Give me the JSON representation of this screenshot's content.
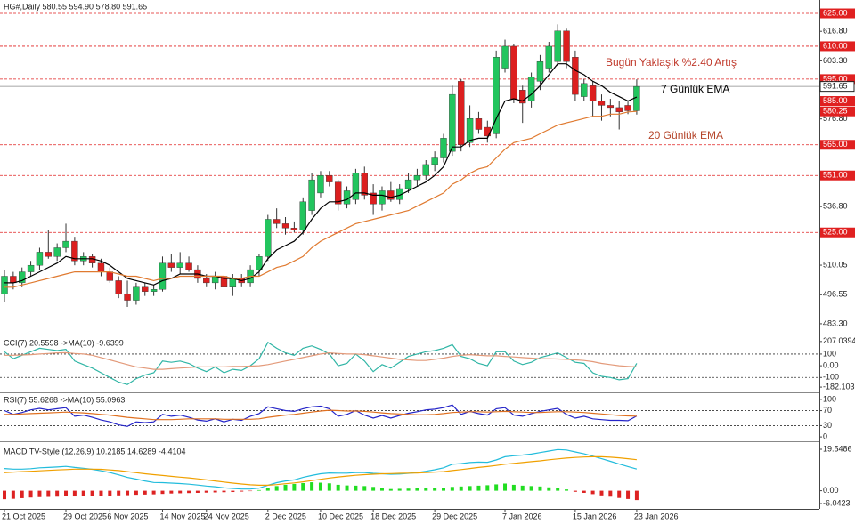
{
  "chart_data": [
    {
      "type": "candlestick",
      "title": "HG#,Daily  580.55 594.90 578.80 591.65",
      "categories": [
        "21 Oct 2025",
        null,
        null,
        null,
        null,
        null,
        null,
        "29 Oct 2025",
        null,
        null,
        null,
        null,
        "6 Nov 2025",
        null,
        null,
        null,
        null,
        null,
        "14 Nov 2025",
        null,
        null,
        null,
        null,
        "24 Nov 2025",
        null,
        null,
        null,
        null,
        null,
        null,
        "2 Dec 2025",
        null,
        null,
        null,
        null,
        null,
        "10 Dec 2025",
        null,
        null,
        null,
        null,
        null,
        "18 Dec 2025",
        null,
        null,
        null,
        null,
        null,
        null,
        "29 Dec 2025",
        null,
        null,
        null,
        null,
        null,
        null,
        null,
        "7 Jan 2026",
        null,
        null,
        null,
        null,
        null,
        null,
        null,
        "15 Jan 2026",
        null,
        null,
        null,
        null,
        null,
        null,
        "23 Jan 2026"
      ],
      "open": [
        497,
        505,
        502,
        507,
        510,
        516,
        514,
        518,
        521,
        512,
        514,
        511,
        507,
        503,
        497,
        494,
        500,
        498,
        499,
        511,
        509,
        511,
        508,
        504,
        502,
        505,
        500,
        504,
        502,
        508,
        514,
        531,
        529,
        527,
        526,
        535,
        543,
        551,
        548,
        538,
        540,
        552,
        543,
        538,
        544,
        540,
        545,
        549,
        551,
        556,
        559,
        562,
        594,
        566,
        577,
        573,
        570,
        600,
        610,
        590,
        585,
        594,
        600,
        603,
        617,
        605,
        587,
        592,
        585,
        583,
        582,
        583,
        580.55
      ],
      "high": [
        508,
        507,
        509,
        512,
        518,
        526,
        520,
        529,
        523,
        516,
        515,
        513,
        509,
        505,
        503,
        502,
        502,
        501,
        514,
        515,
        516,
        514,
        510,
        506,
        507,
        507,
        506,
        506,
        510,
        515,
        533,
        536,
        532,
        530,
        541,
        552,
        553,
        553,
        549,
        546,
        554,
        555,
        547,
        546,
        548,
        547,
        552,
        554,
        558,
        562,
        570,
        592,
        595,
        583,
        580,
        576,
        608,
        613,
        611,
        592,
        598,
        606,
        612,
        620,
        618,
        608,
        595,
        594,
        588,
        586,
        585,
        585,
        594.9
      ],
      "low": [
        493,
        499,
        500,
        505,
        508,
        513,
        512,
        516,
        510,
        510,
        509,
        505,
        502,
        495,
        491,
        492,
        496,
        496,
        498,
        507,
        506,
        507,
        502,
        500,
        499,
        498,
        496,
        500,
        500,
        505,
        512,
        527,
        524,
        525,
        524,
        533,
        541,
        546,
        535,
        536,
        538,
        540,
        533,
        535,
        539,
        538,
        543,
        546,
        549,
        553,
        557,
        560,
        562,
        564,
        570,
        566,
        568,
        598,
        584,
        575,
        582,
        590,
        598,
        601,
        600,
        585,
        585,
        578,
        576,
        578,
        572,
        579,
        578.8
      ],
      "close": [
        505,
        502,
        507,
        510,
        516,
        514,
        518,
        521,
        512,
        514,
        511,
        507,
        503,
        497,
        494,
        500,
        498,
        499,
        511,
        509,
        511,
        508,
        504,
        502,
        505,
        500,
        504,
        502,
        508,
        514,
        531,
        529,
        527,
        526,
        539,
        549,
        551,
        548,
        538,
        544,
        552,
        542,
        538,
        544,
        540,
        545,
        549,
        551,
        556,
        559,
        568,
        588,
        565,
        577,
        572,
        569,
        605,
        610,
        586,
        584,
        596,
        603,
        610,
        617,
        603,
        588,
        593,
        585,
        583,
        582,
        580,
        580.55,
        591.65
      ],
      "up_color": "#22c55e",
      "down_color": "#dc1f1f",
      "wick_color": "#333333",
      "lines": [
        {
          "color": "#000000",
          "values": [
            502,
            502,
            503,
            505,
            507,
            509,
            511,
            514,
            513,
            513,
            513,
            512,
            510,
            507,
            504,
            503,
            502,
            501,
            503,
            504,
            506,
            506,
            506,
            505,
            505,
            504,
            504,
            503,
            504,
            507,
            513,
            517,
            519,
            521,
            525,
            531,
            536,
            539,
            539,
            540,
            543,
            543,
            542,
            542,
            541,
            542,
            544,
            546,
            548,
            551,
            555,
            564,
            564,
            567,
            568,
            568,
            577,
            585,
            586,
            585,
            588,
            592,
            597,
            602,
            602,
            599,
            597,
            594,
            592,
            589,
            587,
            585,
            586.8
          ]
        },
        {
          "color": "#e07a30",
          "values": [
            500,
            500,
            501,
            502,
            503,
            504,
            505,
            506,
            507,
            507,
            507,
            507,
            507,
            506,
            505,
            505,
            504,
            503,
            504,
            504,
            505,
            505,
            505,
            505,
            505,
            505,
            504,
            504,
            505,
            505,
            507,
            509,
            510,
            512,
            514,
            518,
            521,
            523,
            525,
            527,
            529,
            530,
            531,
            532,
            533,
            534,
            535,
            537,
            539,
            541,
            543,
            547,
            549,
            552,
            554,
            555,
            559,
            563,
            566,
            567,
            568,
            570,
            572,
            574,
            575,
            576,
            577,
            578,
            578,
            579,
            579,
            580,
            580.25
          ]
        }
      ],
      "levels": [
        {
          "value": 625,
          "label": "625.00"
        },
        {
          "value": 610,
          "label": "610.00"
        },
        {
          "value": 595,
          "label": "595.00"
        },
        {
          "value": 585,
          "label": "585.00"
        },
        {
          "value": 565,
          "label": "565.00"
        },
        {
          "value": 551,
          "label": "551.00"
        },
        {
          "value": 525,
          "label": "525.00"
        }
      ],
      "level_color": "#e02020",
      "marker_labels": [
        {
          "value": 580.25,
          "label": "580.25"
        }
      ],
      "last_price": {
        "value": 591.65,
        "label": "591.65"
      },
      "ylim": [
        478.8,
        631.1
      ],
      "yticks": [
        {
          "value": 616.8,
          "label": "616.80"
        },
        {
          "value": 603.3,
          "label": "603.30"
        },
        {
          "value": 576.8,
          "label": "576.80"
        },
        {
          "value": 536.8,
          "label": "536.80"
        },
        {
          "value": 510.05,
          "label": "510.05"
        },
        {
          "value": 496.55,
          "label": "496.55"
        },
        {
          "value": 483.3,
          "label": "483.30"
        }
      ],
      "annotations": [
        {
          "text": "Bugün Yaklaşık %2.40 Artış",
          "color": "#c0392b"
        },
        {
          "text": "7 Günlük EMA",
          "color": "#000000"
        },
        {
          "text": "20 Günlük EMA",
          "color": "#b5452a"
        }
      ]
    },
    {
      "type": "line",
      "title": "CCI(7) 20.5598  ->MA(10) -9.6399",
      "series": [
        {
          "color": "#2fb5a5",
          "values": [
            120,
            60,
            90,
            120,
            150,
            140,
            130,
            140,
            40,
            10,
            -20,
            -60,
            -100,
            -140,
            -160,
            -110,
            -80,
            -60,
            40,
            30,
            40,
            20,
            -20,
            -50,
            -10,
            -60,
            -30,
            -40,
            0,
            60,
            200,
            150,
            110,
            90,
            150,
            170,
            140,
            100,
            0,
            20,
            100,
            40,
            -50,
            10,
            -20,
            30,
            80,
            100,
            120,
            130,
            150,
            180,
            80,
            60,
            20,
            0,
            120,
            120,
            40,
            10,
            30,
            70,
            90,
            110,
            70,
            30,
            20,
            -60,
            -90,
            -100,
            -120,
            -110,
            20.5598
          ]
        },
        {
          "color": "#e39a7a",
          "values": [
            90,
            90,
            92,
            95,
            100,
            105,
            110,
            112,
            105,
            100,
            90,
            70,
            50,
            30,
            10,
            -10,
            -20,
            -30,
            -30,
            -25,
            -20,
            -15,
            -10,
            -10,
            -10,
            -10,
            -5,
            -5,
            -3,
            0,
            10,
            25,
            40,
            55,
            70,
            85,
            100,
            110,
            105,
            100,
            100,
            95,
            85,
            75,
            65,
            55,
            50,
            45,
            45,
            55,
            65,
            80,
            90,
            95,
            90,
            85,
            85,
            80,
            75,
            70,
            65,
            60,
            60,
            58,
            55,
            50,
            45,
            35,
            20,
            10,
            0,
            -5,
            -9.6399
          ]
        }
      ],
      "ylim": [
        -227,
        259
      ],
      "yticks": [
        {
          "value": 207.0394,
          "label": "207.0394"
        },
        100,
        {
          "value": 0,
          "label": "0.00"
        },
        -100,
        {
          "value": -182.1036,
          "label": "-182.1036"
        }
      ],
      "levels": [
        100,
        -100
      ]
    },
    {
      "type": "line",
      "title": "RSI(7) 55.6268  ->MA(10) 55.0963",
      "series": [
        {
          "color": "#2424c8",
          "values": [
            70,
            60,
            65,
            72,
            76,
            72,
            75,
            78,
            55,
            58,
            52,
            45,
            40,
            32,
            28,
            40,
            38,
            40,
            60,
            55,
            58,
            52,
            45,
            42,
            48,
            40,
            47,
            44,
            55,
            62,
            80,
            75,
            70,
            68,
            75,
            80,
            82,
            75,
            55,
            60,
            70,
            58,
            50,
            57,
            50,
            57,
            63,
            67,
            72,
            74,
            78,
            85,
            60,
            68,
            62,
            58,
            75,
            78,
            58,
            55,
            62,
            68,
            72,
            76,
            60,
            50,
            55,
            48,
            46,
            44,
            44,
            43,
            55.6268
          ]
        },
        {
          "color": "#e07020",
          "values": [
            60,
            60,
            61,
            62,
            63,
            64,
            65,
            66,
            65,
            64,
            62,
            60,
            58,
            55,
            52,
            50,
            48,
            46,
            46,
            46,
            47,
            48,
            48,
            48,
            48,
            47,
            47,
            47,
            47,
            48,
            52,
            55,
            58,
            60,
            63,
            66,
            69,
            71,
            70,
            69,
            69,
            68,
            66,
            64,
            62,
            61,
            60,
            59,
            59,
            60,
            62,
            65,
            66,
            67,
            67,
            66,
            67,
            68,
            67,
            66,
            65,
            65,
            66,
            67,
            67,
            66,
            65,
            63,
            61,
            59,
            57,
            56,
            55.0963
          ]
        }
      ],
      "ylim": [
        -11.6,
        116.3
      ],
      "yticks": [
        100,
        70,
        30,
        0
      ],
      "levels": [
        70,
        30
      ]
    },
    {
      "type": "macd",
      "title": "MACD TV-Style (12,26,9) 10.2185 14.6289 -4.4104",
      "series": [
        {
          "color": "#22bcdc",
          "values": [
            10.5,
            10.2,
            10.2,
            10.4,
            10.8,
            11,
            11.2,
            11.5,
            11,
            10.6,
            10.1,
            9.4,
            8.6,
            7.5,
            6.3,
            5.5,
            4.6,
            3.9,
            3.8,
            3.6,
            3.4,
            3.1,
            2.7,
            2.2,
            1.9,
            1.4,
            1.1,
            0.8,
            0.8,
            1.2,
            2.6,
            3.8,
            4.6,
            5.1,
            6.3,
            7.2,
            8,
            8.4,
            8.3,
            8.3,
            8.6,
            8.6,
            8.2,
            8,
            7.8,
            7.9,
            8.2,
            8.6,
            9.2,
            9.9,
            10.8,
            12.5,
            12.8,
            13.3,
            13.5,
            13.4,
            14.5,
            16,
            16.5,
            16.8,
            17.3,
            18,
            18.7,
            19.4,
            19.2,
            18.3,
            17.4,
            16.3,
            15.1,
            13.9,
            12.6,
            11.4,
            10.2185
          ]
        },
        {
          "color": "#f0a000",
          "values": [
            8.5,
            8.8,
            9,
            9.2,
            9.4,
            9.6,
            9.8,
            10,
            10.2,
            10.2,
            10.2,
            10.1,
            9.8,
            9.5,
            9,
            8.5,
            8,
            7.6,
            7.2,
            6.8,
            6.4,
            6.1,
            5.6,
            5.1,
            4.6,
            4.1,
            3.6,
            3.2,
            2.8,
            2.6,
            2.6,
            2.9,
            3.3,
            3.7,
            4.2,
            4.8,
            5.4,
            6,
            6.5,
            6.9,
            7.3,
            7.6,
            7.8,
            8,
            8.1,
            8.2,
            8.3,
            8.4,
            8.6,
            8.8,
            9,
            9.5,
            10,
            10.5,
            11,
            11.4,
            11.9,
            12.5,
            12.9,
            13.3,
            13.7,
            14.1,
            14.6,
            15,
            15.4,
            15.7,
            15.9,
            16,
            16,
            15.8,
            15.5,
            15.1,
            14.6289
          ]
        }
      ],
      "histogram": {
        "up_color": "#22dd22",
        "down_color": "#dd2222",
        "values": [
          -4,
          -3.8,
          -3.5,
          -3.2,
          -3,
          -2.9,
          -2.8,
          -2.6,
          -2.7,
          -2.6,
          -2.5,
          -2.4,
          -2.3,
          -2.2,
          -2.1,
          -1.9,
          -1.8,
          -1.7,
          -1.5,
          -1.3,
          -1.2,
          -1.1,
          -1,
          -0.9,
          -0.8,
          -0.7,
          -0.6,
          -0.4,
          -0.2,
          0.3,
          1.5,
          2.2,
          2.8,
          3.2,
          3.6,
          4,
          3.8,
          3.5,
          2.8,
          2.5,
          2.4,
          2.2,
          1.8,
          1.2,
          0.8,
          0.9,
          1,
          1.1,
          1.2,
          1.3,
          1.4,
          1.8,
          2,
          2.2,
          2.4,
          2.6,
          3,
          3.4,
          2.8,
          2.4,
          2.2,
          2,
          1.6,
          1.2,
          0.6,
          -0.5,
          -1,
          -1.6,
          -2.2,
          -2.8,
          -3.4,
          -3.9,
          -4.4104
        ]
      },
      "ylim": [
        -8.56,
        22.9
      ],
      "yticks": [
        {
          "value": 19.5486,
          "label": "19.5486"
        },
        {
          "value": 0,
          "label": "0.00"
        },
        {
          "value": -6.0423,
          "label": "-6.0423"
        }
      ]
    }
  ]
}
